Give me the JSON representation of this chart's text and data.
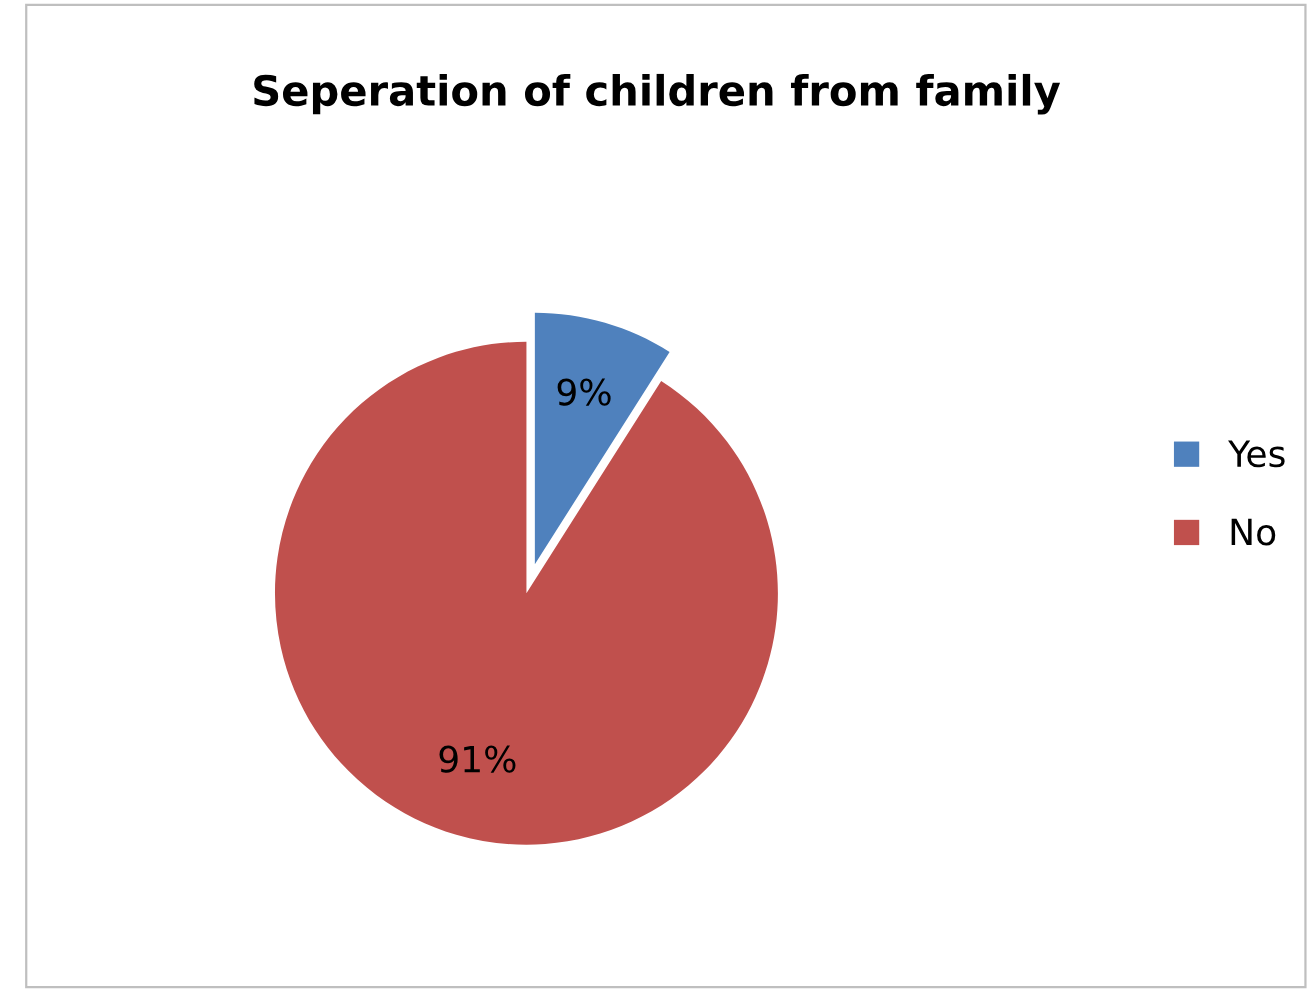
{
  "chart_data": {
    "type": "pie",
    "title": "Seperation of children from family",
    "categories": [
      "Yes",
      "No"
    ],
    "values": [
      9,
      91
    ],
    "value_labels": [
      "9%",
      "91%"
    ],
    "colors": [
      "#4f81bd",
      "#c0504d"
    ],
    "legend": "right"
  }
}
